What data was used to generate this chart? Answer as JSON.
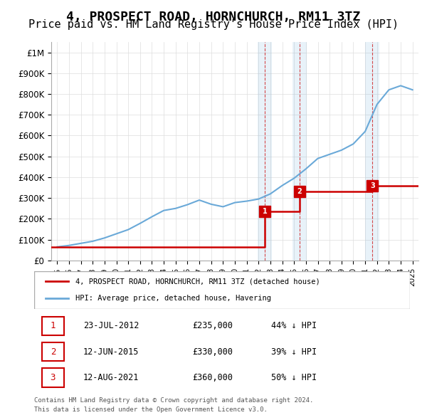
{
  "title": "4, PROSPECT ROAD, HORNCHURCH, RM11 3TZ",
  "subtitle": "Price paid vs. HM Land Registry's House Price Index (HPI)",
  "title_fontsize": 13,
  "subtitle_fontsize": 11,
  "hpi_years": [
    1995,
    1996,
    1997,
    1998,
    1999,
    2000,
    2001,
    2002,
    2003,
    2004,
    2005,
    2006,
    2007,
    2008,
    2009,
    2010,
    2011,
    2012,
    2013,
    2014,
    2015,
    2016,
    2017,
    2018,
    2019,
    2020,
    2021,
    2022,
    2023,
    2024,
    2025
  ],
  "hpi_values": [
    65000,
    72000,
    82000,
    92000,
    108000,
    128000,
    148000,
    178000,
    210000,
    240000,
    250000,
    268000,
    290000,
    270000,
    258000,
    278000,
    285000,
    295000,
    320000,
    360000,
    395000,
    440000,
    490000,
    510000,
    530000,
    560000,
    620000,
    750000,
    820000,
    840000,
    820000
  ],
  "hpi_color": "#6aa9d8",
  "hpi_label": "HPI: Average price, detached house, Havering",
  "price_dates": [
    2012.55,
    2015.44,
    2021.61
  ],
  "price_values": [
    235000,
    330000,
    360000
  ],
  "price_color": "#cc0000",
  "price_label": "4, PROSPECT ROAD, HORNCHURCH, RM11 3TZ (detached house)",
  "transactions": [
    {
      "num": 1,
      "date": "23-JUL-2012",
      "price": "£235,000",
      "diff": "44% ↓ HPI",
      "x": 2012.55
    },
    {
      "num": 2,
      "date": "12-JUN-2015",
      "price": "£330,000",
      "diff": "39% ↓ HPI",
      "x": 2015.44
    },
    {
      "num": 3,
      "date": "12-AUG-2021",
      "price": "£360,000",
      "diff": "50% ↓ HPI",
      "x": 2021.61
    }
  ],
  "ylim": [
    0,
    1050000
  ],
  "yticks": [
    0,
    100000,
    200000,
    300000,
    400000,
    500000,
    600000,
    700000,
    800000,
    900000,
    1000000
  ],
  "ytick_labels": [
    "£0",
    "£100K",
    "£200K",
    "£300K",
    "£400K",
    "£500K",
    "£600K",
    "£700K",
    "£800K",
    "£900K",
    "£1M"
  ],
  "xlim_start": 1994.5,
  "xlim_end": 2025.5,
  "grid_color": "#dddddd",
  "background_color": "#ffffff",
  "marker_box_color": "#cc0000",
  "marker_text_color": "#ffffff",
  "legend_label1": "4, PROSPECT ROAD, HORNCHURCH, RM11 3TZ (detached house)",
  "legend_label2": "HPI: Average price, detached house, Havering",
  "footer1": "Contains HM Land Registry data © Crown copyright and database right 2024.",
  "footer2": "This data is licensed under the Open Government Licence v3.0."
}
